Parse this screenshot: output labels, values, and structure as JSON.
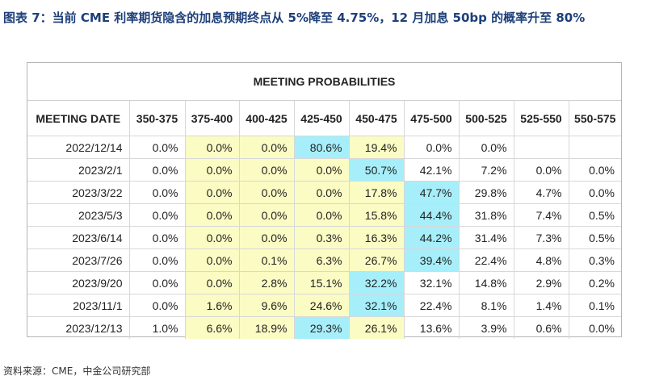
{
  "title": "图表 7：当前 CME 利率期货隐含的加息预期终点从 5%降至 4.75%，12 月加息 50bp 的概率升至 80%",
  "banner": "MEETING PROBABILITIES",
  "headers": [
    "MEETING DATE",
    "350-375",
    "375-400",
    "400-425",
    "425-450",
    "450-475",
    "475-500",
    "500-525",
    "525-550",
    "550-575"
  ],
  "rows": [
    {
      "date": "2022/12/14",
      "values": [
        "0.0%",
        "0.0%",
        "0.0%",
        "80.6%",
        "19.4%",
        "0.0%",
        "0.0%",
        "",
        ""
      ]
    },
    {
      "date": "2023/2/1",
      "values": [
        "0.0%",
        "0.0%",
        "0.0%",
        "0.0%",
        "50.7%",
        "42.1%",
        "7.2%",
        "0.0%",
        "0.0%"
      ]
    },
    {
      "date": "2023/3/22",
      "values": [
        "0.0%",
        "0.0%",
        "0.0%",
        "0.0%",
        "17.8%",
        "47.7%",
        "29.8%",
        "4.7%",
        "0.0%"
      ]
    },
    {
      "date": "2023/5/3",
      "values": [
        "0.0%",
        "0.0%",
        "0.0%",
        "0.0%",
        "15.8%",
        "44.4%",
        "31.8%",
        "7.4%",
        "0.5%"
      ]
    },
    {
      "date": "2023/6/14",
      "values": [
        "0.0%",
        "0.0%",
        "0.0%",
        "0.3%",
        "16.3%",
        "44.2%",
        "31.4%",
        "7.3%",
        "0.5%"
      ]
    },
    {
      "date": "2023/7/26",
      "values": [
        "0.0%",
        "0.0%",
        "0.1%",
        "6.3%",
        "26.7%",
        "39.4%",
        "22.4%",
        "4.8%",
        "0.3%"
      ]
    },
    {
      "date": "2023/9/20",
      "values": [
        "0.0%",
        "0.0%",
        "2.8%",
        "15.1%",
        "32.2%",
        "32.1%",
        "14.8%",
        "2.9%",
        "0.2%"
      ]
    },
    {
      "date": "2023/11/1",
      "values": [
        "0.0%",
        "1.6%",
        "9.6%",
        "24.6%",
        "32.1%",
        "22.4%",
        "8.1%",
        "1.4%",
        "0.1%"
      ]
    },
    {
      "date": "2023/12/13",
      "values": [
        "1.0%",
        "6.6%",
        "18.9%",
        "29.3%",
        "26.1%",
        "13.6%",
        "3.9%",
        "0.6%",
        "0.0%"
      ]
    }
  ],
  "highlight": {
    "shaded_columns": [
      "375-400",
      "400-425",
      "425-450",
      "450-475"
    ],
    "max_cell_color": "#a6eefa",
    "shaded_color": "#fbfbc4"
  },
  "source": "资料来源：CME，中金公司研究部"
}
